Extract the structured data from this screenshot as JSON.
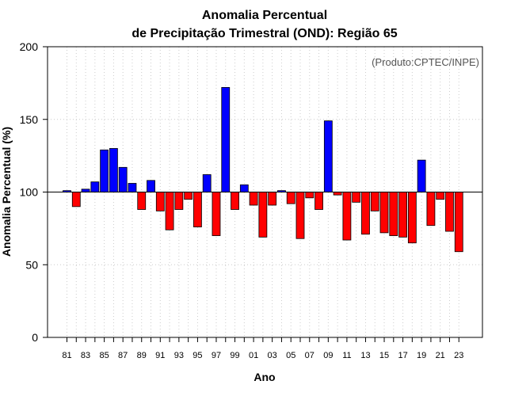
{
  "chart_data": {
    "type": "bar",
    "title_line1": "Anomalia Percentual",
    "title_line2": "de Precipitação Trimestral (OND): Região 65",
    "xlabel": "Ano",
    "ylabel": "Anomalia Percentual (%)",
    "credit": "(Produto:CPTEC/INPE)",
    "ylim": [
      0,
      200
    ],
    "yticks": [
      0,
      50,
      100,
      150,
      200
    ],
    "baseline": 100,
    "grid": true,
    "colors": {
      "above": "#0000ff",
      "below": "#ff0000",
      "stroke": "#000000",
      "grid": "#cccccc"
    },
    "categories": [
      "81",
      "82",
      "83",
      "84",
      "85",
      "86",
      "87",
      "88",
      "89",
      "90",
      "91",
      "92",
      "93",
      "94",
      "95",
      "96",
      "97",
      "98",
      "99",
      "00",
      "01",
      "02",
      "03",
      "04",
      "05",
      "06",
      "07",
      "08",
      "09",
      "10",
      "11",
      "12",
      "13",
      "14",
      "15",
      "16",
      "17",
      "18",
      "19",
      "20",
      "21",
      "22",
      "23"
    ],
    "x_tick_labels": [
      "81",
      "83",
      "85",
      "87",
      "89",
      "91",
      "93",
      "95",
      "97",
      "99",
      "01",
      "03",
      "05",
      "07",
      "09",
      "11",
      "13",
      "15",
      "17",
      "19",
      "21",
      "23"
    ],
    "values": [
      101,
      90,
      102,
      107,
      129,
      130,
      117,
      106,
      88,
      108,
      87,
      74,
      88,
      95,
      76,
      112,
      70,
      172,
      88,
      105,
      91,
      69,
      91,
      101,
      92,
      68,
      96,
      88,
      149,
      98,
      67,
      93,
      71,
      87,
      72,
      70,
      69,
      65,
      122,
      77,
      95,
      73,
      59
    ]
  }
}
